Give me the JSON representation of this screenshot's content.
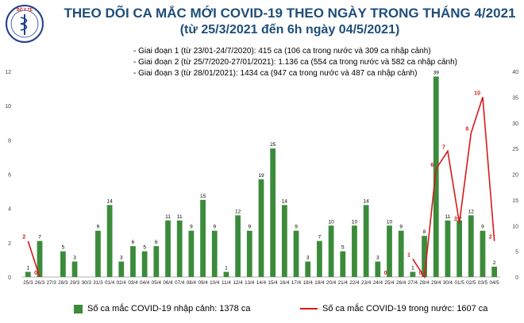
{
  "header": {
    "title": "THEO DÕI CA MẮC MỚI COVID-19 THEO NGÀY TRONG THÁNG 4/2021",
    "subtitle": "(từ 25/3/2021 đến 6h ngày 04/5/2021)"
  },
  "logo": {
    "text": "BỘ Y TẾ",
    "icon": "ministry-of-health-emblem"
  },
  "notes": [
    "- Giai đoạn 1 (từ 23/01-24/7/2020): 415 ca (106 ca trong nước và 309 ca nhập cảnh)",
    "- Giai đoạn 2 (từ 25/7/2020-27/01/2021): 1.136 ca (554 ca trong nước và 582 ca nhập cảnh)",
    "- Giai đoạn 3 (từ 28/01/2021): 1434 ca (947 ca trong nước và 487 ca nhập cảnh)"
  ],
  "legend": {
    "bars": "Số ca mắc COVID-19 nhập cảnh: 1378 ca",
    "line": "Số ca mắc COVID-19 trong nước: 1607 ca"
  },
  "chart_data": {
    "type": "bar",
    "categories": [
      "25/3",
      "26/3",
      "27/3",
      "28/3",
      "29/3",
      "30/3",
      "31/3",
      "01/4",
      "02/4",
      "03/4",
      "04/4",
      "05/4",
      "06/4",
      "07/4",
      "08/4",
      "09/4",
      "10/4",
      "11/4",
      "12/4",
      "13/4",
      "14/4",
      "15/4",
      "16/4",
      "17/4",
      "18/4",
      "19/4",
      "20/4",
      "21/4",
      "22/4",
      "23/4",
      "24/4",
      "25/4",
      "26/4",
      "27/4",
      "28/4",
      "29/4",
      "30/4",
      "01/5",
      "02/5",
      "03/5",
      "04/5"
    ],
    "series": [
      {
        "values": [
          1,
          7,
          null,
          5,
          3,
          null,
          9,
          14,
          3,
          6,
          5,
          6,
          11,
          11,
          9,
          15,
          9,
          1,
          12,
          9,
          19,
          25,
          14,
          9,
          3,
          7,
          10,
          5,
          10,
          14,
          3,
          10,
          9,
          1,
          8,
          39,
          11,
          11,
          12,
          9,
          2
        ]
      },
      {
        "values": [
          2,
          0,
          null,
          null,
          null,
          null,
          null,
          null,
          null,
          null,
          null,
          null,
          null,
          null,
          null,
          null,
          null,
          null,
          null,
          null,
          null,
          null,
          null,
          null,
          null,
          null,
          null,
          null,
          null,
          null,
          null,
          0,
          null,
          1,
          0,
          6,
          7,
          3,
          8,
          10,
          2
        ]
      }
    ],
    "bar_labels": [
      "1",
      "7",
      "",
      "5",
      "3",
      "",
      "9",
      "14",
      "3",
      "6",
      "5",
      "6",
      "11",
      "11",
      "9",
      "15",
      "9",
      "1",
      "12",
      "9",
      "19",
      "25",
      "14",
      "9",
      "3",
      "7",
      "10",
      "5",
      "10",
      "14",
      "3",
      "10",
      "9",
      "1",
      "8",
      "39",
      "11",
      "11",
      "12",
      "9",
      "2"
    ],
    "line_labels": [
      "2",
      "0",
      "",
      "",
      "",
      "",
      "",
      "",
      "",
      "",
      "",
      "",
      "",
      "",
      "",
      "",
      "",
      "",
      "",
      "",
      "",
      "",
      "",
      "",
      "",
      "",
      "",
      "",
      "",
      "",
      "",
      "0",
      "",
      "1",
      "0",
      "6",
      "7",
      "3",
      "8",
      "10",
      "2"
    ],
    "left_axis": {
      "ticks": [
        "0",
        "2",
        "4",
        "6",
        "8",
        "10",
        "12"
      ],
      "range": [
        0,
        12
      ]
    },
    "right_axis": {
      "ticks": [
        "0",
        "5",
        "10",
        "15",
        "20",
        "25",
        "30",
        "35",
        "40"
      ],
      "range": [
        0,
        40
      ]
    },
    "colors": {
      "bars": "#3b8b3b",
      "line": "#d7191c"
    }
  }
}
